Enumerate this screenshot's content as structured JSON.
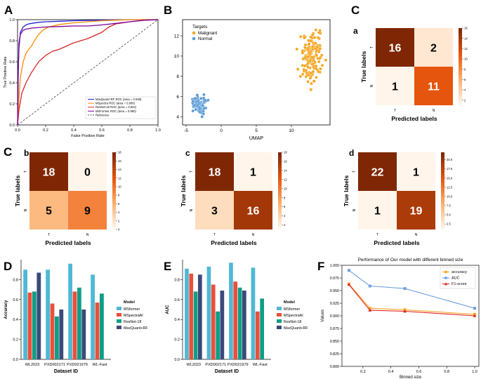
{
  "panels": {
    "A": {
      "letter": "A",
      "chart_data": {
        "type": "line",
        "xlabel": "False Positive Rate",
        "ylabel": "True Positive Rate",
        "xlim": [
          0,
          1
        ],
        "ylim": [
          0,
          1
        ],
        "xticks": [
          "0.0",
          "0.2",
          "0.4",
          "0.6",
          "0.8",
          "1.0"
        ],
        "yticks": [
          "0.0",
          "0.2",
          "0.4",
          "0.6",
          "0.8",
          "1.0"
        ],
        "legend_position": "lower-right",
        "series": [
          {
            "name": "MaxQuant+RF ROC (area = 0.939)",
            "color": "#1f1fd6",
            "x": [
              0,
              0.005,
              0.01,
              0.02,
              0.04,
              0.06,
              0.08,
              0.1,
              0.15,
              0.2,
              0.3,
              0.4,
              0.5,
              0.6,
              0.7,
              0.8,
              1.0
            ],
            "y": [
              0,
              0.52,
              0.72,
              0.88,
              0.93,
              0.95,
              0.96,
              0.965,
              0.975,
              0.98,
              0.985,
              0.99,
              0.993,
              0.996,
              0.998,
              1.0,
              1.0
            ]
          },
          {
            "name": "MSpectra ROC (area = 0.908)",
            "color": "#ff8c00",
            "x": [
              0,
              0.01,
              0.02,
              0.04,
              0.06,
              0.08,
              0.1,
              0.12,
              0.15,
              0.18,
              0.22,
              0.3,
              0.4,
              0.5,
              0.6,
              0.7,
              0.8,
              1.0
            ],
            "y": [
              0,
              0.25,
              0.45,
              0.6,
              0.68,
              0.72,
              0.75,
              0.8,
              0.86,
              0.9,
              0.93,
              0.955,
              0.97,
              0.98,
              0.99,
              0.995,
              1.0,
              1.0
            ]
          },
          {
            "name": "ResNet-18 ROC (area = 0.842)",
            "color": "#d62728",
            "x": [
              0,
              0.01,
              0.03,
              0.06,
              0.1,
              0.15,
              0.2,
              0.25,
              0.3,
              0.35,
              0.4,
              0.5,
              0.6,
              0.65,
              0.7,
              0.8,
              0.9,
              1.0
            ],
            "y": [
              0,
              0.14,
              0.3,
              0.4,
              0.5,
              0.6,
              0.66,
              0.7,
              0.72,
              0.75,
              0.78,
              0.82,
              0.88,
              0.93,
              0.96,
              0.98,
              0.995,
              1.0
            ]
          },
          {
            "name": "MSFormer ROC (area = 0.960)",
            "color": "#7b0099",
            "x": [
              0,
              0.005,
              0.01,
              0.02,
              0.04,
              0.06,
              0.1,
              0.2,
              0.3,
              0.4,
              0.5,
              0.6,
              0.7,
              0.8,
              0.9,
              1.0
            ],
            "y": [
              0,
              0.5,
              0.78,
              0.86,
              0.9,
              0.91,
              0.92,
              0.93,
              0.935,
              0.94,
              0.94,
              0.95,
              0.965,
              0.98,
              0.995,
              1.0
            ]
          },
          {
            "name": "Reference",
            "color": "#555555",
            "dashed": true,
            "x": [
              0,
              1
            ],
            "y": [
              0,
              1
            ]
          }
        ]
      }
    },
    "B": {
      "letter": "B",
      "chart_data": {
        "type": "scatter",
        "xlabel": "UMAP",
        "ylabel": "",
        "xlim": [
          -5.5,
          15.5
        ],
        "ylim": [
          3.2,
          13.6
        ],
        "xticks": [
          -5,
          0,
          5,
          10
        ],
        "yticks": [
          4,
          6,
          8,
          10,
          12
        ],
        "legend_title": "Targets",
        "legend_position": "top-left",
        "series": [
          {
            "name": "Malignant",
            "color": "#f5a623",
            "center": [
              13.0,
              10.0
            ],
            "spread": [
              1.1,
              1.6
            ],
            "count": 150
          },
          {
            "name": "Normal",
            "color": "#5b9bd5",
            "center": [
              -3.0,
              5.2
            ],
            "spread": [
              0.8,
              0.6
            ],
            "count": 80
          }
        ]
      }
    },
    "C": {
      "letter": "C",
      "matrices": [
        {
          "label": "a",
          "values": [
            [
              16,
              2
            ],
            [
              1,
              11
            ]
          ],
          "vmin": 1,
          "vmax": 16,
          "colorbar_ticks": [
            "16",
            "14",
            "12",
            "10",
            "8",
            "6",
            "4",
            "2"
          ],
          "xticks": [
            "T",
            "N"
          ],
          "yticks": [
            "T",
            "N"
          ],
          "xlabel": "Predicted labels",
          "ylabel": "True labels"
        },
        {
          "label": "b",
          "values": [
            [
              18,
              0
            ],
            [
              5,
              9
            ]
          ],
          "vmin": 0,
          "vmax": 18,
          "colorbar_ticks": [
            "18",
            "16",
            "14",
            "12",
            "10",
            "8",
            "6",
            "4",
            "2",
            "0"
          ],
          "xticks": [
            "T",
            "N"
          ],
          "yticks": [
            "T",
            "N"
          ],
          "xlabel": "Predicted labels",
          "ylabel": "True labels"
        },
        {
          "label": "c",
          "values": [
            [
              18,
              1
            ],
            [
              3,
              16
            ]
          ],
          "vmin": 1,
          "vmax": 18,
          "colorbar_ticks": [
            "18",
            "16",
            "14",
            "12",
            "10",
            "8",
            "6",
            "4",
            "2"
          ],
          "xticks": [
            "T",
            "N"
          ],
          "yticks": [
            "T",
            "N"
          ],
          "xlabel": "Predicted labels",
          "ylabel": "True labels"
        },
        {
          "label": "d",
          "values": [
            [
              22,
              1
            ],
            [
              1,
              19
            ]
          ],
          "vmin": 1,
          "vmax": 22,
          "colorbar_ticks": [
            "20.0",
            "17.5",
            "15.0",
            "12.5",
            "10.0",
            "7.5",
            "5.0",
            "2.5"
          ],
          "xticks": [
            "T",
            "N"
          ],
          "yticks": [
            "T",
            "N"
          ],
          "xlabel": "Predicted labels",
          "ylabel": "True labels"
        }
      ]
    },
    "D": {
      "letter": "D",
      "chart_data": {
        "type": "bar",
        "categories": [
          "WL2023",
          "PXD002171",
          "PXD021979",
          "WL-Fast"
        ],
        "xlabel": "Dataset ID",
        "ylabel": "Accuracy",
        "ylim": [
          0,
          1
        ],
        "yticks": [
          "0.0",
          "0.2",
          "0.4",
          "0.6",
          "0.8"
        ],
        "legend_title": "Model",
        "series": [
          {
            "name": "MSformer",
            "color": "#4fb8d6",
            "values": [
              0.9,
              0.9,
              0.96,
              0.85
            ]
          },
          {
            "name": "MSpectraAI",
            "color": "#e8503a",
            "values": [
              0.67,
              0.56,
              0.68,
              0.57
            ]
          },
          {
            "name": "ResNet-18",
            "color": "#0e9e86",
            "values": [
              0.68,
              0.43,
              0.72,
              0.66
            ]
          },
          {
            "name": "MaxQuant+RF",
            "color": "#3a4a7a",
            "values": [
              0.87,
              0.5,
              0.5,
              null
            ]
          }
        ]
      }
    },
    "E": {
      "letter": "E",
      "chart_data": {
        "type": "bar",
        "categories": [
          "WL2023",
          "PXD002171",
          "PXD021979",
          "WL-Fast"
        ],
        "xlabel": "Dataset ID",
        "ylabel": "AUC",
        "ylim": [
          0,
          1
        ],
        "yticks": [
          "0.0",
          "0.2",
          "0.4",
          "0.6",
          "0.8"
        ],
        "legend_title": "Model",
        "series": [
          {
            "name": "MSformer",
            "color": "#4fb8d6",
            "values": [
              0.91,
              0.93,
              0.97,
              0.92
            ]
          },
          {
            "name": "MSpectraAI",
            "color": "#e8503a",
            "values": [
              0.86,
              0.75,
              0.78,
              0.48
            ]
          },
          {
            "name": "ResNet-18",
            "color": "#0e9e86",
            "values": [
              0.68,
              0.48,
              0.72,
              0.61
            ]
          },
          {
            "name": "MaxQuant+RF",
            "color": "#3a4a7a",
            "values": [
              0.85,
              0.69,
              0.69,
              null
            ]
          }
        ]
      }
    },
    "F": {
      "letter": "F",
      "chart_data": {
        "type": "line",
        "title": "Performance of Our model with different binned size",
        "xlabel": "Binned size",
        "ylabel": "Values",
        "xlim": [
          0.05,
          1.03
        ],
        "ylim": [
          0.8,
          1.0
        ],
        "xticks": [
          "0.2",
          "0.4",
          "0.6",
          "0.8",
          "1.0"
        ],
        "yticks": [
          "0.800",
          "0.825",
          "0.850",
          "0.875",
          "0.900",
          "0.925",
          "0.950",
          "0.975",
          "1.000"
        ],
        "legend_position": "top-right",
        "series": [
          {
            "name": "accuracy",
            "color": "#f5a623",
            "marker": "square",
            "x": [
              0.1,
              0.25,
              0.5,
              1.0
            ],
            "y": [
              0.963,
              0.915,
              0.912,
              0.903
            ]
          },
          {
            "name": "AUC",
            "color": "#6fa0e0",
            "marker": "square",
            "x": [
              0.1,
              0.25,
              0.5,
              1.0
            ],
            "y": [
              0.99,
              0.959,
              0.954,
              0.915
            ]
          },
          {
            "name": "F1-score",
            "color": "#e02020",
            "marker": "triangle",
            "x": [
              0.1,
              0.25,
              0.5,
              1.0
            ],
            "y": [
              0.962,
              0.911,
              0.909,
              0.9
            ]
          }
        ]
      }
    }
  }
}
